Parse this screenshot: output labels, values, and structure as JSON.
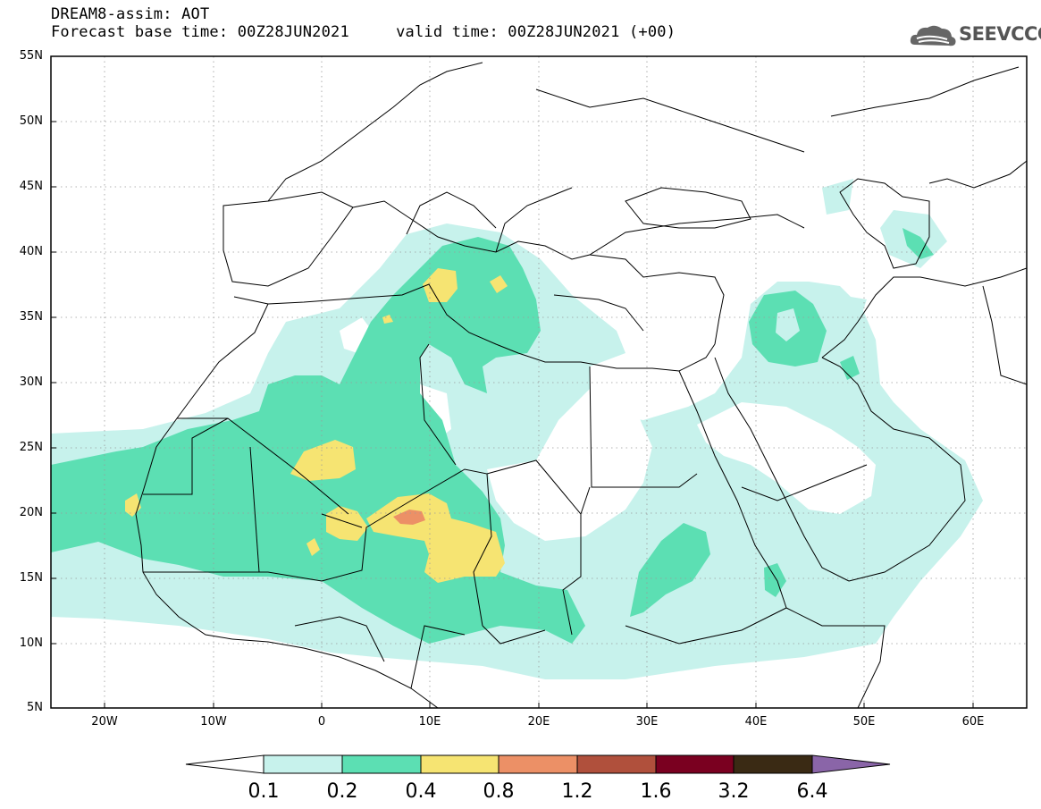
{
  "header": {
    "title_line1": "DREAM8-assim: AOT",
    "title_line2": "Forecast base time: 00Z28JUN2021     valid time: 00Z28JUN2021 (+00)",
    "logo_text": "SEEVCCC",
    "logo_icon": "cloud-icon"
  },
  "map": {
    "lat_labels": [
      "55N",
      "50N",
      "45N",
      "40N",
      "35N",
      "30N",
      "25N",
      "20N",
      "15N",
      "10N",
      "5N"
    ],
    "lon_labels": [
      "20W",
      "10W",
      "0",
      "10E",
      "20E",
      "30E",
      "40E",
      "50E",
      "60E"
    ],
    "colors": {
      "c1": "#c7f2ec",
      "c2": "#5cdfb3",
      "c3": "#f6e472",
      "c4": "#ec9066",
      "border": "#000000"
    }
  },
  "colorbar": {
    "levels": [
      "0.1",
      "0.2",
      "0.4",
      "0.8",
      "1.2",
      "1.6",
      "3.2",
      "6.4"
    ],
    "colors": [
      "#ffffff",
      "#c7f2ec",
      "#5cdfb3",
      "#f6e472",
      "#ec9066",
      "#b0503c",
      "#7a0020",
      "#3a2a14",
      "#8a65a8"
    ]
  }
}
